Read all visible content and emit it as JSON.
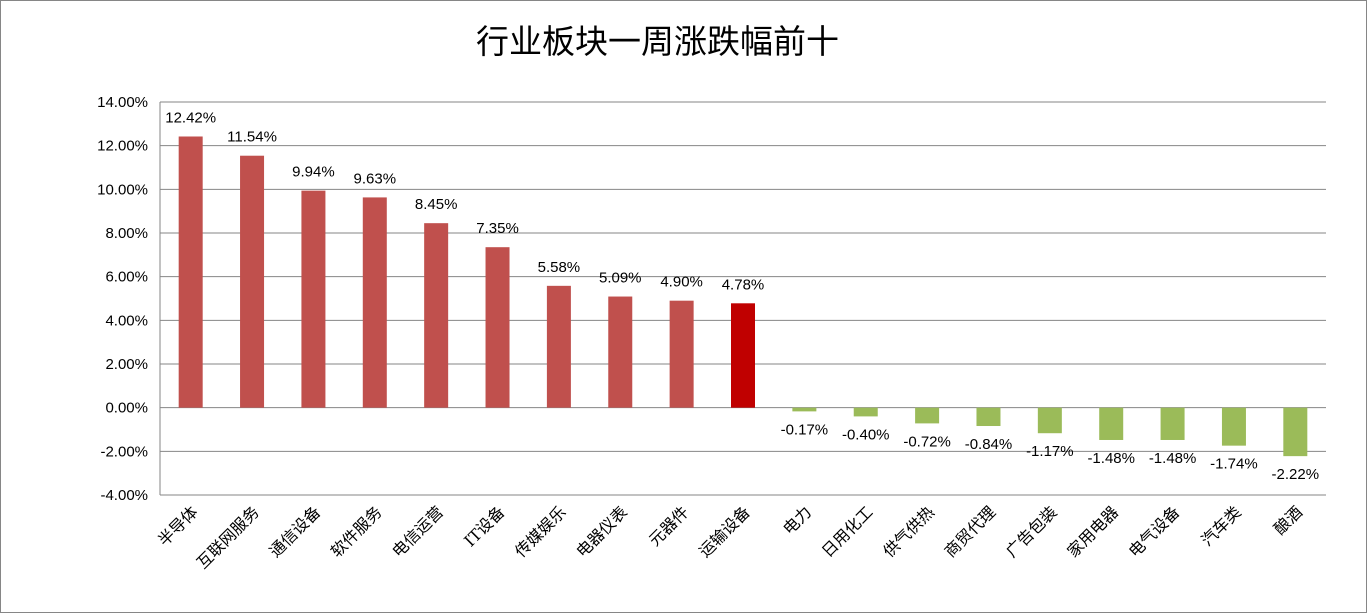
{
  "chart_data": {
    "type": "bar",
    "title": "行业板块一周涨跌幅前十",
    "xlabel": "",
    "ylabel": "",
    "ylim": [
      -4,
      14
    ],
    "yticks": [
      "14.00%",
      "12.00%",
      "10.00%",
      "8.00%",
      "6.00%",
      "4.00%",
      "2.00%",
      "0.00%",
      "-2.00%",
      "-4.00%"
    ],
    "grid": true,
    "legend": "none",
    "categories": [
      "半导体",
      "互联网服务",
      "通信设备",
      "软件服务",
      "电信运营",
      "IT设备",
      "传媒娱乐",
      "电器仪表",
      "元器件",
      "运输设备",
      "电力",
      "日用化工",
      "供气供热",
      "商贸代理",
      "广告包装",
      "家用电器",
      "电气设备",
      "汽车类",
      "酿酒"
    ],
    "values": [
      12.42,
      11.54,
      9.94,
      9.63,
      8.45,
      7.35,
      5.58,
      5.09,
      4.9,
      4.78,
      -0.17,
      -0.4,
      -0.72,
      -0.84,
      -1.17,
      -1.48,
      -1.48,
      -1.74,
      -2.22
    ],
    "data_labels": [
      "12.42%",
      "11.54%",
      "9.94%",
      "9.63%",
      "8.45%",
      "7.35%",
      "5.58%",
      "5.09%",
      "4.90%",
      "4.78%",
      "-0.17%",
      "-0.40%",
      "-0.72%",
      "-0.84%",
      "-1.17%",
      "-1.48%",
      "-1.48%",
      "-1.74%",
      "-2.22%"
    ],
    "colors": {
      "positive": "#c0504d",
      "highlight": "#c00000",
      "negative": "#9bbb59",
      "grid": "#868686",
      "highlight_category": "运输设备"
    }
  }
}
